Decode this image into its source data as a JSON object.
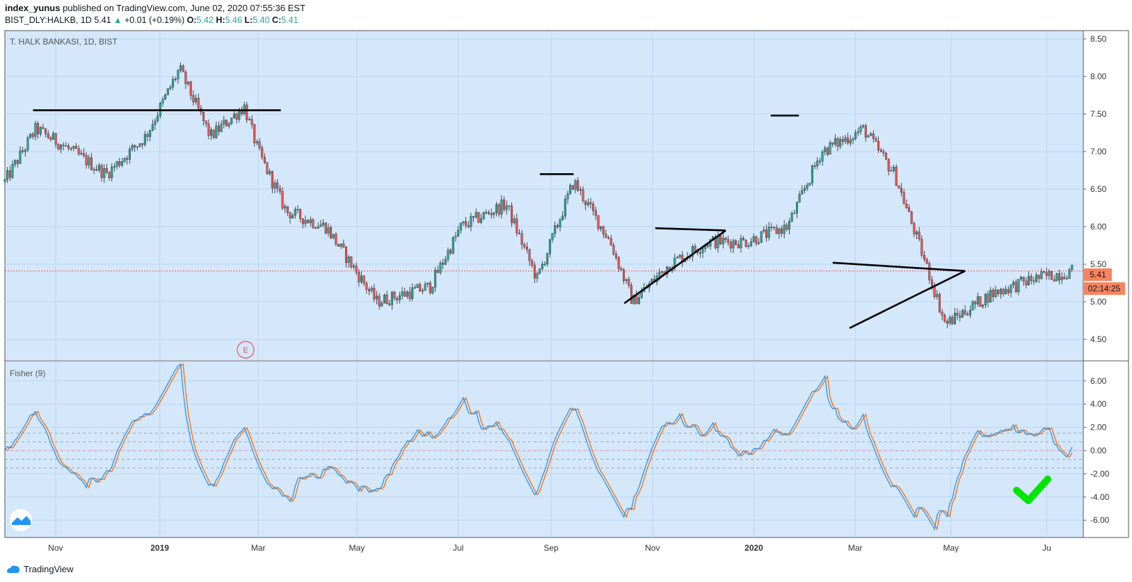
{
  "header": {
    "author": "index_yunus",
    "published_text": " published on TradingView.com, June 02, 2020 07:55:36 EST",
    "symbol": "BIST_DLY:HALKB, 1D",
    "last": "5.41",
    "change": "+0.01 (+0.19%)",
    "open_label": "O:",
    "open": "5.42",
    "high_label": "H:",
    "high": "5.46",
    "low_label": "L:",
    "low": "5.40",
    "close_label": "C:",
    "close": "5.41"
  },
  "colors": {
    "plot_bg": "#d4e7fb",
    "up": "#26a69a",
    "down": "#ef5350",
    "fisher": "#2196f3",
    "trigger": "#ff6d00",
    "price_badge": "#f7845f",
    "check": "#00e600"
  },
  "chart_data": [
    {
      "type": "candlestick",
      "title": "T. HALK BANKASI, 1D, BIST",
      "ylim": [
        4.3,
        8.6
      ],
      "y_ticks": [
        "8.50",
        "8.00",
        "7.50",
        "7.00",
        "6.50",
        "6.00",
        "5.50",
        "5.00",
        "4.50"
      ],
      "x_ticks": [
        "Nov",
        "2019",
        "Mar",
        "May",
        "Jul",
        "Sep",
        "Nov",
        "2020",
        "Mar",
        "May",
        "Ju"
      ],
      "last_price_label": "5.41",
      "countdown_label": "02:14:25",
      "event_marker": "E",
      "price_path_monthly": [
        {
          "t": 0,
          "v": 6.6
        },
        {
          "t": 1.1,
          "v": 7.3
        },
        {
          "t": 2.0,
          "v": 7.1
        },
        {
          "t": 3.6,
          "v": 6.7
        },
        {
          "t": 5.0,
          "v": 7.2
        },
        {
          "t": 6.2,
          "v": 8.1
        },
        {
          "t": 7.3,
          "v": 7.2
        },
        {
          "t": 8.5,
          "v": 7.6
        },
        {
          "t": 9.0,
          "v": 7.0
        },
        {
          "t": 10.0,
          "v": 6.2
        },
        {
          "t": 11.4,
          "v": 6.0
        },
        {
          "t": 13.2,
          "v": 5.0
        },
        {
          "t": 15.1,
          "v": 5.2
        },
        {
          "t": 16.2,
          "v": 6.0
        },
        {
          "t": 17.8,
          "v": 6.3
        },
        {
          "t": 18.9,
          "v": 5.3
        },
        {
          "t": 20.2,
          "v": 6.6
        },
        {
          "t": 21.5,
          "v": 5.8
        },
        {
          "t": 22.3,
          "v": 5.0
        },
        {
          "t": 23.6,
          "v": 5.5
        },
        {
          "t": 25.0,
          "v": 5.8
        },
        {
          "t": 26.3,
          "v": 5.8
        },
        {
          "t": 27.8,
          "v": 6.0
        },
        {
          "t": 29.0,
          "v": 7.0
        },
        {
          "t": 30.5,
          "v": 7.3
        },
        {
          "t": 31.6,
          "v": 6.7
        },
        {
          "t": 32.8,
          "v": 5.4
        },
        {
          "t": 33.4,
          "v": 4.7
        },
        {
          "t": 35.0,
          "v": 5.1
        },
        {
          "t": 36.5,
          "v": 5.3
        },
        {
          "t": 37.9,
          "v": 5.41
        }
      ]
    },
    {
      "type": "line",
      "title": "Fisher (9)",
      "ylim": [
        -7.5,
        7.0
      ],
      "y_ticks": [
        "6.00",
        "4.00",
        "2.00",
        "0.00",
        "-2.00",
        "-4.00",
        "-6.00"
      ]
    }
  ]
}
